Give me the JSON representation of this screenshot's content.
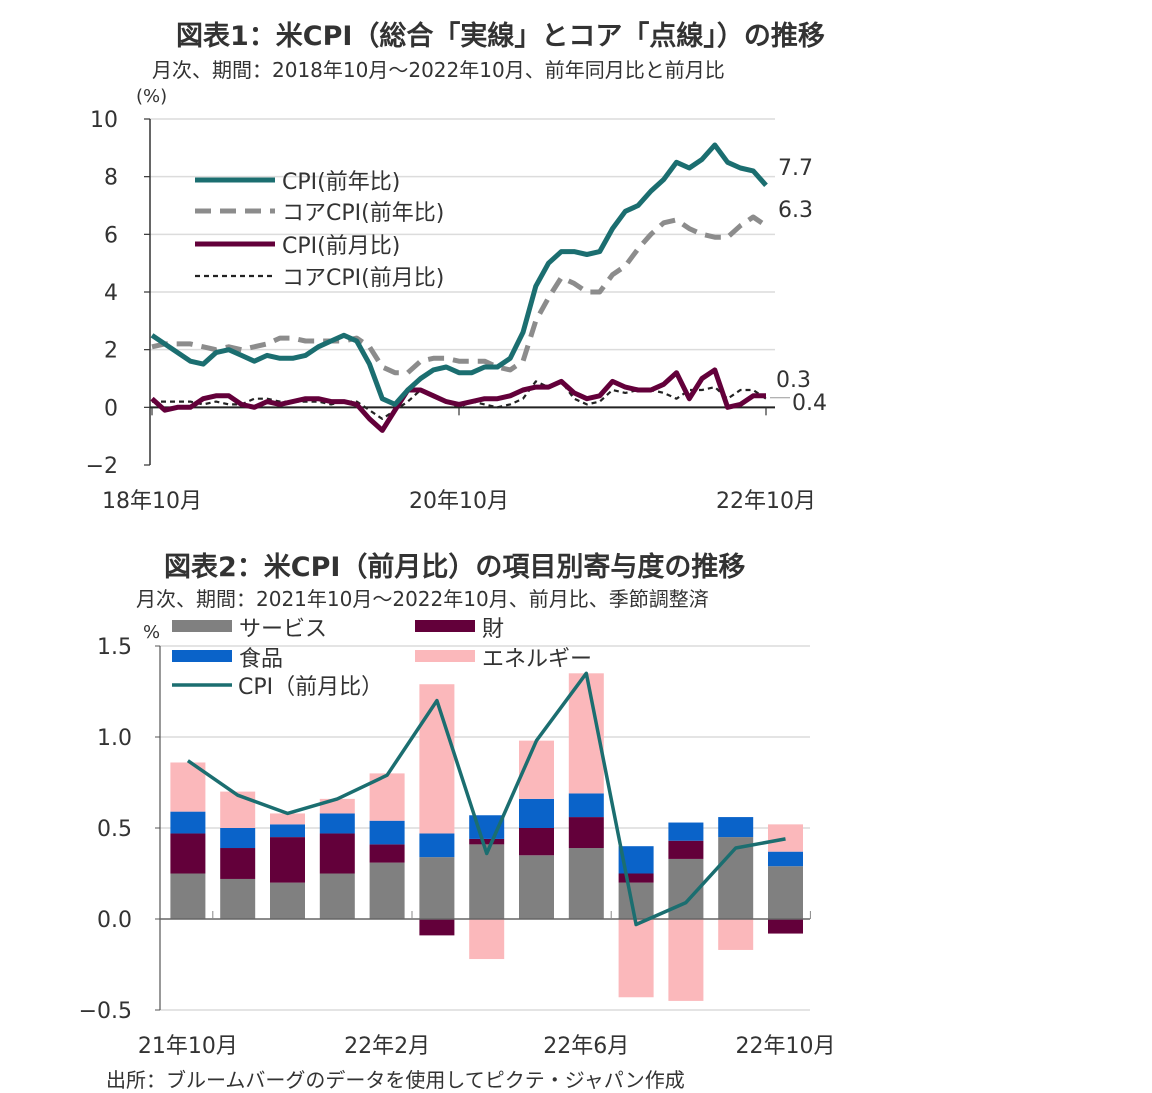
{
  "chart_data": [
    {
      "type": "line",
      "title": "図表1：米CPI（総合「実線」とコア「点線」）の推移",
      "subtitle": "月次、期間：2018年10月～2022年10月、前年同月比と前月比",
      "ylabel": "(%)",
      "ylim": [
        -2,
        10
      ],
      "yticks": [
        -2,
        0,
        2,
        4,
        6,
        8,
        10
      ],
      "yticklabels": [
        "−2",
        "0",
        "2",
        "4",
        "6",
        "8",
        "10"
      ],
      "x_start": "2018-10",
      "x_end": "2022-10",
      "xticklabels": [
        "18年10月",
        "20年10月",
        "22年10月"
      ],
      "grid": true,
      "legend_placement": "top-left",
      "series": [
        {
          "name": "CPI(前年比)",
          "color": "#1b6e70",
          "style": "solid-thick",
          "values": [
            2.5,
            2.2,
            1.9,
            1.6,
            1.5,
            1.9,
            2.0,
            1.8,
            1.6,
            1.8,
            1.7,
            1.7,
            1.8,
            2.1,
            2.3,
            2.5,
            2.3,
            1.5,
            0.3,
            0.1,
            0.6,
            1.0,
            1.3,
            1.4,
            1.2,
            1.2,
            1.4,
            1.4,
            1.7,
            2.6,
            4.2,
            5.0,
            5.4,
            5.4,
            5.3,
            5.4,
            6.2,
            6.8,
            7.0,
            7.5,
            7.9,
            8.5,
            8.3,
            8.6,
            9.1,
            8.5,
            8.3,
            8.2,
            7.7
          ]
        },
        {
          "name": "コアCPI(前年比)",
          "color": "#8c8c8c",
          "style": "dashed-thick",
          "values": [
            2.1,
            2.2,
            2.2,
            2.2,
            2.1,
            2.0,
            2.1,
            2.0,
            2.1,
            2.2,
            2.4,
            2.4,
            2.3,
            2.3,
            2.3,
            2.3,
            2.4,
            2.1,
            1.4,
            1.2,
            1.2,
            1.6,
            1.7,
            1.7,
            1.6,
            1.6,
            1.6,
            1.4,
            1.3,
            1.6,
            3.0,
            3.8,
            4.5,
            4.3,
            4.0,
            4.0,
            4.6,
            4.9,
            5.5,
            6.0,
            6.4,
            6.5,
            6.2,
            6.0,
            5.9,
            5.9,
            6.3,
            6.6,
            6.3
          ]
        },
        {
          "name": "CPI(前月比)",
          "color": "#63003a",
          "style": "solid-thick",
          "values": [
            0.3,
            -0.1,
            0.0,
            0.0,
            0.3,
            0.4,
            0.4,
            0.1,
            0.0,
            0.2,
            0.1,
            0.2,
            0.3,
            0.3,
            0.2,
            0.2,
            0.1,
            -0.4,
            -0.8,
            -0.1,
            0.6,
            0.6,
            0.4,
            0.2,
            0.1,
            0.2,
            0.3,
            0.3,
            0.4,
            0.6,
            0.7,
            0.7,
            0.9,
            0.5,
            0.3,
            0.4,
            0.9,
            0.7,
            0.6,
            0.6,
            0.8,
            1.2,
            0.3,
            1.0,
            1.3,
            0.0,
            0.1,
            0.4,
            0.4
          ]
        },
        {
          "name": "コアCPI(前月比)",
          "color": "#222222",
          "style": "dotted-thin",
          "values": [
            0.2,
            0.2,
            0.2,
            0.2,
            0.1,
            0.2,
            0.1,
            0.1,
            0.3,
            0.3,
            0.2,
            0.2,
            0.2,
            0.2,
            0.1,
            0.2,
            0.2,
            -0.1,
            -0.4,
            -0.1,
            0.2,
            0.6,
            0.4,
            0.2,
            0.0,
            0.2,
            0.1,
            0.0,
            0.1,
            0.3,
            0.9,
            0.7,
            0.9,
            0.3,
            0.1,
            0.2,
            0.6,
            0.5,
            0.6,
            0.6,
            0.5,
            0.3,
            0.6,
            0.6,
            0.7,
            0.3,
            0.6,
            0.6,
            0.3
          ]
        }
      ],
      "annotations": [
        "7.7",
        "6.3",
        "0.3",
        "0.4"
      ]
    },
    {
      "type": "bar",
      "stacked": true,
      "title": "図表2：米CPI（前月比）の項目別寄与度の推移",
      "subtitle": "月次、期間：2021年10月～2022年10月、前月比、季節調整済",
      "ylabel": "%",
      "ylim": [
        -0.5,
        1.5
      ],
      "yticks": [
        -0.5,
        0.0,
        0.5,
        1.0,
        1.5
      ],
      "yticklabels": [
        "−0.5",
        "0.0",
        "0.5",
        "1.0",
        "1.5"
      ],
      "categories": [
        "2021-10",
        "2021-11",
        "2021-12",
        "2022-01",
        "2022-02",
        "2022-03",
        "2022-04",
        "2022-05",
        "2022-06",
        "2022-07",
        "2022-08",
        "2022-09",
        "2022-10"
      ],
      "xticklabels": [
        "21年10月",
        "22年2月",
        "22年6月",
        "22年10月"
      ],
      "grid": true,
      "legend_placement": "top-left",
      "series": [
        {
          "name": "サービス",
          "color": "#808080",
          "values": [
            0.25,
            0.22,
            0.2,
            0.25,
            0.31,
            0.34,
            0.41,
            0.35,
            0.39,
            0.2,
            0.33,
            0.45,
            0.29
          ]
        },
        {
          "name": "財",
          "color": "#63003a",
          "values": [
            0.22,
            0.17,
            0.25,
            0.22,
            0.1,
            -0.09,
            0.03,
            0.15,
            0.17,
            0.05,
            0.1,
            0.0,
            -0.08
          ]
        },
        {
          "name": "食品",
          "color": "#0a63c9",
          "values": [
            0.12,
            0.11,
            0.07,
            0.11,
            0.13,
            0.13,
            0.13,
            0.16,
            0.13,
            0.15,
            0.1,
            0.11,
            0.08
          ]
        },
        {
          "name": "エネルギー",
          "color": "#fbb8bb",
          "values": [
            0.27,
            0.2,
            0.06,
            0.08,
            0.26,
            0.82,
            -0.22,
            0.32,
            0.66,
            -0.43,
            -0.45,
            -0.17,
            0.15
          ]
        }
      ],
      "line_series": {
        "name": "CPI（前月比）",
        "color": "#1b6e70",
        "values": [
          0.87,
          0.68,
          0.58,
          0.66,
          0.79,
          1.2,
          0.36,
          0.98,
          1.35,
          -0.03,
          0.09,
          0.39,
          0.44
        ]
      }
    }
  ],
  "source": "出所：ブルームバーグのデータを使用してピクテ・ジャパン作成"
}
